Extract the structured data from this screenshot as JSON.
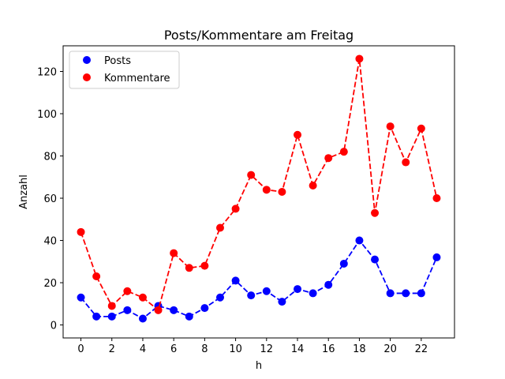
{
  "chart_data": {
    "type": "line",
    "title": "Posts/Kommentare am Freitag",
    "xlabel": "h",
    "ylabel": "Anzahl",
    "x": [
      0,
      1,
      2,
      3,
      4,
      5,
      6,
      7,
      8,
      9,
      10,
      11,
      12,
      13,
      14,
      15,
      16,
      17,
      18,
      19,
      20,
      21,
      22,
      23
    ],
    "xlim": [
      -1.15,
      24.15
    ],
    "ylim": [
      -6.15,
      132.15
    ],
    "xticks": [
      0,
      2,
      4,
      6,
      8,
      10,
      12,
      14,
      16,
      18,
      20,
      22
    ],
    "yticks": [
      0,
      20,
      40,
      60,
      80,
      100,
      120
    ],
    "grid": false,
    "legend_position": "upper left",
    "series": [
      {
        "name": "Posts",
        "color": "#0000ff",
        "line_style": "dashed",
        "marker": "circle",
        "values": [
          13,
          4,
          4,
          7,
          3,
          9,
          7,
          4,
          8,
          13,
          21,
          14,
          16,
          11,
          17,
          15,
          19,
          29,
          40,
          31,
          15,
          15,
          15,
          32
        ]
      },
      {
        "name": "Kommentare",
        "color": "#ff0000",
        "line_style": "dashed",
        "marker": "circle",
        "values": [
          44,
          23,
          9,
          16,
          13,
          7,
          34,
          27,
          28,
          46,
          55,
          71,
          64,
          63,
          90,
          66,
          79,
          82,
          126,
          53,
          94,
          77,
          93,
          60
        ]
      }
    ]
  }
}
